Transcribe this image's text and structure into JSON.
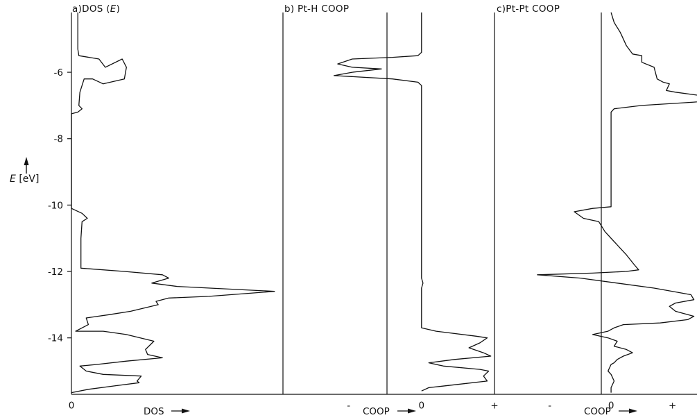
{
  "y_axis": {
    "label_symbol": "E",
    "label_unit": "[eV]",
    "ylim": [
      -15.7,
      -4.2
    ],
    "ticks": [
      -6,
      -8,
      -10,
      -12,
      -14
    ]
  },
  "chart_data": [
    {
      "type": "line",
      "title": "a)DOS (E)",
      "title_prefix": "a)DOS (",
      "title_italic": "E",
      "title_suffix": ")",
      "xlabel": "DOS",
      "x_ticks": [
        {
          "value": 0,
          "label": "0"
        }
      ],
      "xlim": [
        0,
        10
      ],
      "series": [
        {
          "points": [
            [
              0.3,
              -4.2
            ],
            [
              0.3,
              -5.3
            ],
            [
              0.35,
              -5.5
            ],
            [
              1.3,
              -5.6
            ],
            [
              1.6,
              -5.85
            ],
            [
              2.4,
              -5.6
            ],
            [
              2.6,
              -5.85
            ],
            [
              2.5,
              -6.2
            ],
            [
              1.5,
              -6.35
            ],
            [
              1.0,
              -6.2
            ],
            [
              0.6,
              -6.2
            ],
            [
              0.4,
              -6.6
            ],
            [
              0.35,
              -7.0
            ],
            [
              0.5,
              -7.1
            ],
            [
              0.3,
              -7.2
            ],
            [
              0.0,
              -7.25
            ],
            [
              0.0,
              -10.1
            ],
            [
              0.5,
              -10.25
            ],
            [
              0.75,
              -10.4
            ],
            [
              0.5,
              -10.5
            ],
            [
              0.45,
              -11.0
            ],
            [
              0.45,
              -11.9
            ],
            [
              2.5,
              -12.0
            ],
            [
              4.3,
              -12.1
            ],
            [
              4.6,
              -12.2
            ],
            [
              3.8,
              -12.35
            ],
            [
              5.0,
              -12.45
            ],
            [
              9.6,
              -12.6
            ],
            [
              6.5,
              -12.75
            ],
            [
              4.6,
              -12.8
            ],
            [
              4.0,
              -12.9
            ],
            [
              4.1,
              -13.0
            ],
            [
              2.8,
              -13.2
            ],
            [
              1.8,
              -13.3
            ],
            [
              0.7,
              -13.4
            ],
            [
              0.8,
              -13.6
            ],
            [
              0.2,
              -13.8
            ],
            [
              1.5,
              -13.8
            ],
            [
              2.6,
              -13.9
            ],
            [
              3.9,
              -14.1
            ],
            [
              3.5,
              -14.35
            ],
            [
              3.6,
              -14.5
            ],
            [
              4.3,
              -14.6
            ],
            [
              2.6,
              -14.7
            ],
            [
              1.2,
              -14.8
            ],
            [
              0.4,
              -14.85
            ],
            [
              0.7,
              -15.0
            ],
            [
              1.5,
              -15.1
            ],
            [
              3.3,
              -15.15
            ],
            [
              3.1,
              -15.3
            ],
            [
              3.2,
              -15.35
            ],
            [
              2.0,
              -15.45
            ],
            [
              0.8,
              -15.55
            ],
            [
              0.0,
              -15.65
            ]
          ]
        }
      ]
    },
    {
      "type": "line",
      "title": "b) Pt-H COOP",
      "xlabel": "COOP",
      "x_ticks": [
        {
          "value": -1,
          "label": "-"
        },
        {
          "value": 0,
          "label": "0"
        },
        {
          "value": 1,
          "label": "+"
        }
      ],
      "xlim": [
        -1.9,
        1.0
      ],
      "series": [
        {
          "points": [
            [
              0.0,
              -4.2
            ],
            [
              0.0,
              -5.4
            ],
            [
              -0.05,
              -5.5
            ],
            [
              -0.4,
              -5.55
            ],
            [
              -0.95,
              -5.6
            ],
            [
              -1.15,
              -5.75
            ],
            [
              -0.95,
              -5.85
            ],
            [
              -0.55,
              -5.9
            ],
            [
              -0.95,
              -6.0
            ],
            [
              -1.2,
              -6.1
            ],
            [
              -0.4,
              -6.2
            ],
            [
              -0.05,
              -6.3
            ],
            [
              0.0,
              -6.4
            ],
            [
              0.0,
              -12.2
            ],
            [
              0.02,
              -12.35
            ],
            [
              0.0,
              -12.5
            ],
            [
              0.0,
              -13.7
            ],
            [
              0.2,
              -13.8
            ],
            [
              0.75,
              -13.95
            ],
            [
              0.9,
              -14.0
            ],
            [
              0.8,
              -14.15
            ],
            [
              0.65,
              -14.3
            ],
            [
              0.85,
              -14.45
            ],
            [
              0.95,
              -14.55
            ],
            [
              0.45,
              -14.65
            ],
            [
              0.1,
              -14.75
            ],
            [
              0.3,
              -14.85
            ],
            [
              0.8,
              -14.95
            ],
            [
              0.92,
              -15.0
            ],
            [
              0.85,
              -15.15
            ],
            [
              0.9,
              -15.3
            ],
            [
              0.5,
              -15.4
            ],
            [
              0.1,
              -15.5
            ],
            [
              0.0,
              -15.6
            ]
          ]
        }
      ]
    },
    {
      "type": "line",
      "title": "c)Pt-Pt COOP",
      "xlabel": "COOP",
      "x_ticks": [
        {
          "value": -1,
          "label": "-"
        },
        {
          "value": 0,
          "label": "0"
        },
        {
          "value": 1,
          "label": "+"
        }
      ],
      "xlim": [
        -1.9,
        1.4
      ],
      "series": [
        {
          "points": [
            [
              0.0,
              -4.2
            ],
            [
              0.05,
              -4.5
            ],
            [
              0.15,
              -4.8
            ],
            [
              0.25,
              -5.2
            ],
            [
              0.35,
              -5.45
            ],
            [
              0.5,
              -5.5
            ],
            [
              0.5,
              -5.7
            ],
            [
              0.7,
              -5.85
            ],
            [
              0.75,
              -6.2
            ],
            [
              0.85,
              -6.3
            ],
            [
              0.95,
              -6.35
            ],
            [
              0.9,
              -6.55
            ],
            [
              1.05,
              -6.6
            ],
            [
              1.45,
              -6.7
            ],
            [
              1.7,
              -6.85
            ],
            [
              1.35,
              -6.9
            ],
            [
              0.5,
              -7.0
            ],
            [
              0.05,
              -7.1
            ],
            [
              0.0,
              -7.2
            ],
            [
              0.0,
              -10.05
            ],
            [
              -0.3,
              -10.1
            ],
            [
              -0.6,
              -10.2
            ],
            [
              -0.45,
              -10.4
            ],
            [
              -0.2,
              -10.5
            ],
            [
              -0.1,
              -10.8
            ],
            [
              0.05,
              -11.1
            ],
            [
              0.25,
              -11.5
            ],
            [
              0.38,
              -11.8
            ],
            [
              0.45,
              -11.95
            ],
            [
              0.25,
              -12.0
            ],
            [
              -0.3,
              -12.05
            ],
            [
              -1.2,
              -12.1
            ],
            [
              -0.5,
              -12.2
            ],
            [
              0.1,
              -12.35
            ],
            [
              0.7,
              -12.5
            ],
            [
              1.3,
              -12.7
            ],
            [
              1.35,
              -12.85
            ],
            [
              1.05,
              -12.95
            ],
            [
              0.95,
              -13.05
            ],
            [
              1.05,
              -13.2
            ],
            [
              1.35,
              -13.35
            ],
            [
              1.25,
              -13.45
            ],
            [
              0.8,
              -13.55
            ],
            [
              0.2,
              -13.6
            ],
            [
              0.05,
              -13.7
            ],
            [
              -0.05,
              -13.8
            ],
            [
              -0.3,
              -13.9
            ],
            [
              -0.05,
              -14.0
            ],
            [
              0.1,
              -14.1
            ],
            [
              0.05,
              -14.25
            ],
            [
              0.25,
              -14.35
            ],
            [
              0.35,
              -14.45
            ],
            [
              0.2,
              -14.55
            ],
            [
              0.1,
              -14.65
            ],
            [
              0.05,
              -14.75
            ],
            [
              0.0,
              -14.8
            ],
            [
              -0.05,
              -15.0
            ],
            [
              0.0,
              -15.1
            ],
            [
              0.05,
              -15.3
            ],
            [
              0.0,
              -15.5
            ],
            [
              0.0,
              -15.65
            ]
          ]
        }
      ]
    }
  ]
}
